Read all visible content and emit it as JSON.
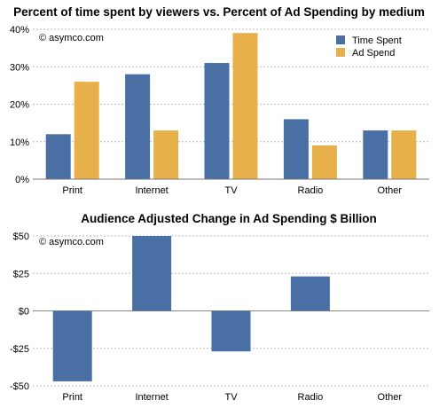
{
  "chart_data": [
    {
      "type": "bar",
      "title": "Percent of time spent by viewers vs. Percent of Ad Spending by medium",
      "annotation": "© asymco.com",
      "categories": [
        "Print",
        "Internet",
        "TV",
        "Radio",
        "Other"
      ],
      "series": [
        {
          "name": "Time Spent",
          "color": "#4a6fa5",
          "values": [
            12,
            28,
            31,
            16,
            13
          ]
        },
        {
          "name": "Ad Spend",
          "color": "#e8b04a",
          "values": [
            26,
            13,
            39,
            9,
            13
          ]
        }
      ],
      "ylim": [
        0,
        40
      ],
      "yticks": [
        0,
        10,
        20,
        30,
        40
      ],
      "ytick_labels": [
        "0%",
        "10%",
        "20%",
        "30%",
        "40%"
      ],
      "grid": true,
      "legend_position": "top-right",
      "xlabel": "",
      "ylabel": ""
    },
    {
      "type": "bar",
      "title": "Audience Adjusted Change in Ad Spending $ Billion",
      "annotation": "© asymco.com",
      "categories": [
        "Print",
        "Internet",
        "TV",
        "Radio",
        "Other"
      ],
      "series": [
        {
          "color": "#4a6fa5",
          "values": [
            -47,
            50,
            -27,
            23,
            0
          ]
        }
      ],
      "ylim": [
        -50,
        50
      ],
      "yticks": [
        -50,
        -25,
        0,
        25,
        50
      ],
      "ytick_labels": [
        "-$50",
        "-$25",
        "$0",
        "$25",
        "$50"
      ],
      "grid": true,
      "xlabel": "",
      "ylabel": ""
    }
  ]
}
